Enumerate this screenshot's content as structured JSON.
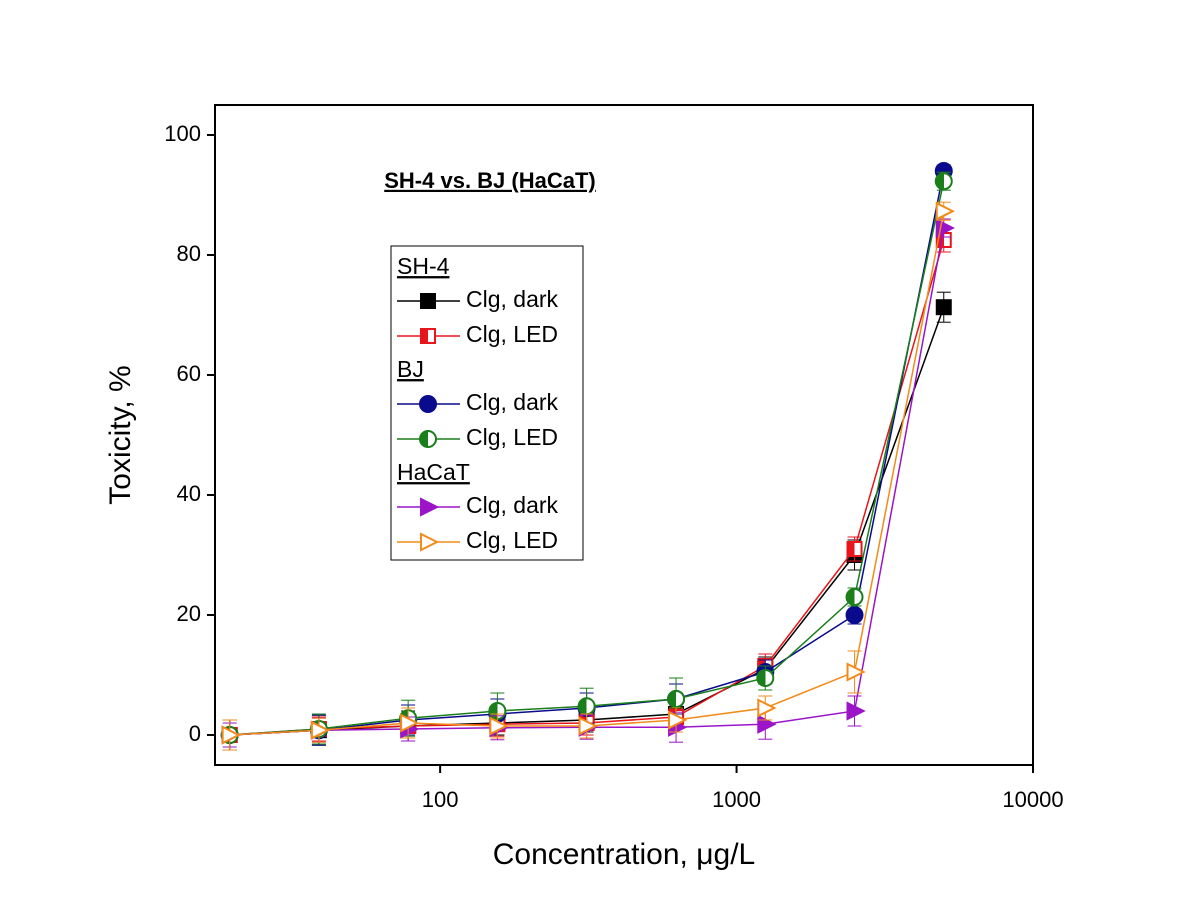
{
  "chart_data": {
    "type": "scatter",
    "title": "SH-4 vs. BJ (HaCaT)",
    "x_label": "Concentration, μg/L",
    "y_label": "Toxicity, %",
    "x_scale": "log",
    "xlim": [
      17.4,
      10000
    ],
    "xticks": [
      100,
      1000,
      10000
    ],
    "ylim": [
      -5,
      105
    ],
    "yticks": [
      0,
      20,
      40,
      60,
      80,
      100
    ],
    "x": [
      19.5,
      39,
      78,
      156,
      312,
      625,
      1250,
      2500,
      5000
    ],
    "series": [
      {
        "group": "SH-4",
        "name": "Clg, dark",
        "color": "#000000",
        "marker": "square",
        "fill": "full",
        "values": [
          0,
          0.8,
          1.5,
          2,
          2.5,
          3.5,
          11,
          30,
          71.3
        ],
        "errors": [
          2.5,
          2.5,
          2.5,
          2,
          2,
          2,
          2,
          2.5,
          2.5
        ]
      },
      {
        "group": "SH-4",
        "name": "Clg, LED",
        "color": "#e8151b",
        "marker": "square",
        "fill": "half",
        "values": [
          0,
          1,
          1.5,
          1.8,
          2,
          3,
          11.5,
          31,
          82.5
        ],
        "errors": [
          2.5,
          2,
          2,
          2,
          2,
          2,
          2,
          2,
          2
        ]
      },
      {
        "group": "BJ",
        "name": "Clg, dark",
        "color": "#0a0a8c",
        "marker": "circle",
        "fill": "full",
        "values": [
          0,
          0.8,
          2.5,
          3.5,
          4.5,
          6,
          10.5,
          20,
          94
        ],
        "errors": [
          2.5,
          2.5,
          2.5,
          2.5,
          2.5,
          2.5,
          2,
          1.5,
          1
        ]
      },
      {
        "group": "BJ",
        "name": "Clg, LED",
        "color": "#1a7f1a",
        "marker": "circle",
        "fill": "half",
        "values": [
          0,
          1,
          2.8,
          4,
          4.8,
          6,
          9.5,
          23,
          92.3
        ],
        "errors": [
          2.5,
          2.5,
          3,
          3,
          3,
          3.5,
          2,
          1.5,
          1.5
        ]
      },
      {
        "group": "HaCaT",
        "name": "Clg, dark",
        "color": "#9b14c8",
        "marker": "triangle",
        "fill": "full",
        "values": [
          0,
          0.8,
          1,
          1.2,
          1.3,
          1.3,
          1.8,
          4,
          84.5
        ],
        "errors": [
          2,
          2,
          2,
          2,
          2,
          2.5,
          2.5,
          2.5,
          1.5
        ]
      },
      {
        "group": "HaCaT",
        "name": "Clg, LED",
        "color": "#f28b1a",
        "marker": "triangle",
        "fill": "none",
        "values": [
          0,
          0.8,
          2,
          1.5,
          1.5,
          2.5,
          4.5,
          10.5,
          87.3
        ],
        "errors": [
          2.5,
          2,
          2.5,
          2,
          2,
          2,
          2,
          3.5,
          1.5
        ]
      }
    ]
  }
}
